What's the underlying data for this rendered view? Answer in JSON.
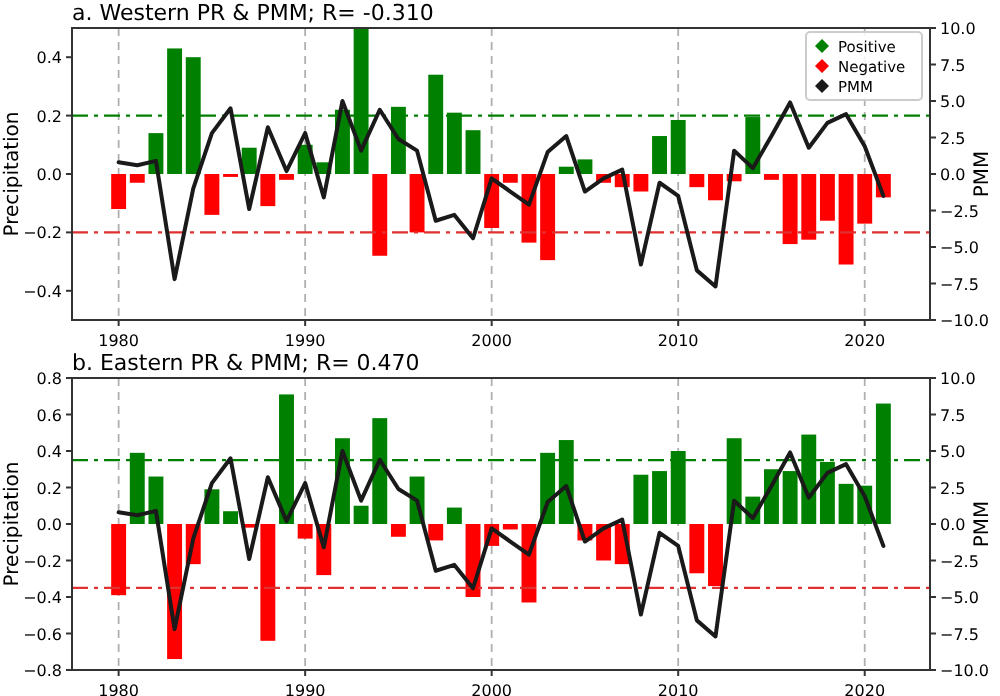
{
  "chart_data": [
    {
      "type": "bar",
      "title": "a. Western PR & PMM; R= -0.310",
      "ylabel": "Precipitation",
      "y2label": "PMM",
      "x": [
        1980,
        1981,
        1982,
        1983,
        1984,
        1985,
        1986,
        1987,
        1988,
        1989,
        1990,
        1991,
        1992,
        1993,
        1994,
        1995,
        1996,
        1997,
        1998,
        1999,
        2000,
        2001,
        2002,
        2003,
        2004,
        2005,
        2006,
        2007,
        2008,
        2009,
        2010,
        2011,
        2012,
        2013,
        2014,
        2015,
        2016,
        2017,
        2018,
        2019,
        2020,
        2021
      ],
      "series": [
        {
          "name": "Positive",
          "color": "#008000",
          "values": [
            null,
            null,
            0.14,
            0.43,
            0.4,
            null,
            null,
            0.09,
            null,
            null,
            0.1,
            0.04,
            0.22,
            0.5,
            null,
            0.23,
            null,
            0.34,
            0.21,
            0.15,
            null,
            null,
            null,
            null,
            0.025,
            0.05,
            null,
            null,
            null,
            0.13,
            0.185,
            null,
            null,
            null,
            0.195,
            null,
            null,
            null,
            null,
            null,
            null,
            null
          ]
        },
        {
          "name": "Negative",
          "color": "#ff0000",
          "values": [
            -0.12,
            -0.03,
            null,
            null,
            null,
            -0.14,
            -0.01,
            null,
            -0.11,
            -0.02,
            null,
            null,
            null,
            null,
            -0.28,
            null,
            -0.2,
            null,
            null,
            null,
            -0.185,
            -0.03,
            -0.235,
            -0.295,
            null,
            null,
            -0.03,
            -0.045,
            -0.06,
            null,
            null,
            -0.045,
            -0.09,
            -0.025,
            null,
            -0.02,
            -0.24,
            -0.225,
            -0.16,
            -0.31,
            -0.17,
            -0.08
          ]
        },
        {
          "name": "PMM",
          "type": "line",
          "axis": "y2",
          "color": "#1a1a1a",
          "values": [
            0.8,
            0.6,
            0.9,
            -7.2,
            -1.0,
            2.8,
            4.5,
            -2.4,
            3.2,
            0.2,
            2.8,
            -1.6,
            5.0,
            1.6,
            4.4,
            2.4,
            1.6,
            -3.2,
            -2.8,
            -4.4,
            -0.3,
            -1.2,
            -2.1,
            1.5,
            2.6,
            -1.2,
            -0.3,
            0.3,
            -6.2,
            -0.6,
            -1.5,
            -6.6,
            -7.7,
            1.6,
            0.4,
            2.6,
            4.9,
            1.8,
            3.5,
            4.1,
            1.9,
            -1.5
          ]
        }
      ],
      "xlim": [
        1977.5,
        2023.5
      ],
      "xticks": [
        1980,
        1990,
        2000,
        2010,
        2020
      ],
      "ylim": [
        -0.5,
        0.5
      ],
      "yticks": [
        {
          "value": -0.4,
          "label": "−0.4"
        },
        {
          "value": -0.2,
          "label": "−0.2"
        },
        {
          "value": 0,
          "label": "0.0"
        },
        0.2,
        0.4
      ],
      "y2lim": [
        -10,
        10
      ],
      "y2ticks": [
        {
          "value": -10,
          "label": "−10.0"
        },
        {
          "value": -7.5,
          "label": "−7.5"
        },
        {
          "value": -5,
          "label": "−5.0"
        },
        {
          "value": -2.5,
          "label": "−2.5"
        },
        {
          "value": 0,
          "label": "0.0"
        },
        {
          "value": 2.5,
          "label": "2.5"
        },
        {
          "value": 5,
          "label": "5.0"
        },
        {
          "value": 7.5,
          "label": "7.5"
        },
        {
          "value": 10,
          "label": "10.0"
        }
      ],
      "ref_lines": [
        {
          "axis": "y",
          "value": 0.2,
          "color": "#008000"
        },
        {
          "axis": "y",
          "value": -0.2,
          "color": "#e03030"
        }
      ],
      "grid": "x",
      "legend": "top right"
    },
    {
      "type": "bar",
      "title": "b. Eastern PR & PMM; R= 0.470",
      "ylabel": "Precipitation",
      "y2label": "PMM",
      "x": [
        1980,
        1981,
        1982,
        1983,
        1984,
        1985,
        1986,
        1987,
        1988,
        1989,
        1990,
        1991,
        1992,
        1993,
        1994,
        1995,
        1996,
        1997,
        1998,
        1999,
        2000,
        2001,
        2002,
        2003,
        2004,
        2005,
        2006,
        2007,
        2008,
        2009,
        2010,
        2011,
        2012,
        2013,
        2014,
        2015,
        2016,
        2017,
        2018,
        2019,
        2020,
        2021
      ],
      "series": [
        {
          "color": "#008000",
          "values": [
            null,
            0.39,
            0.26,
            null,
            null,
            0.19,
            0.07,
            null,
            null,
            0.71,
            null,
            null,
            0.47,
            0.1,
            0.58,
            null,
            0.26,
            null,
            0.09,
            null,
            null,
            null,
            null,
            0.39,
            0.46,
            null,
            null,
            null,
            0.27,
            0.29,
            0.4,
            null,
            null,
            0.47,
            0.15,
            0.3,
            0.29,
            0.49,
            0.34,
            0.22,
            0.21,
            0.66
          ]
        },
        {
          "color": "#ff0000",
          "values": [
            -0.39,
            null,
            null,
            -0.74,
            -0.22,
            null,
            null,
            -0.02,
            -0.64,
            null,
            -0.08,
            -0.28,
            null,
            null,
            null,
            -0.07,
            null,
            -0.09,
            null,
            -0.4,
            -0.12,
            -0.03,
            -0.43,
            null,
            null,
            -0.09,
            -0.2,
            -0.22,
            null,
            null,
            null,
            -0.27,
            -0.34,
            null,
            null,
            null,
            null,
            null,
            null,
            null,
            null,
            null
          ]
        },
        {
          "type": "line",
          "axis": "y2",
          "color": "#1a1a1a",
          "values": [
            0.8,
            0.6,
            0.9,
            -7.2,
            -1.0,
            2.8,
            4.5,
            -2.4,
            3.2,
            0.2,
            2.8,
            -1.6,
            5.0,
            1.6,
            4.4,
            2.4,
            1.6,
            -3.2,
            -2.8,
            -4.4,
            -0.3,
            -1.2,
            -2.1,
            1.5,
            2.6,
            -1.2,
            -0.3,
            0.3,
            -6.2,
            -0.6,
            -1.5,
            -6.6,
            -7.7,
            1.6,
            0.4,
            2.6,
            4.9,
            1.8,
            3.5,
            4.1,
            1.9,
            -1.5
          ]
        }
      ],
      "xlim": [
        1977.5,
        2023.5
      ],
      "xticks": [
        1980,
        1990,
        2000,
        2010,
        2020
      ],
      "ylim": [
        -0.8,
        0.8
      ],
      "yticks": [
        {
          "value": -0.8,
          "label": "−0.8"
        },
        {
          "value": -0.6,
          "label": "−0.6"
        },
        {
          "value": -0.4,
          "label": "−0.4"
        },
        {
          "value": -0.2,
          "label": "−0.2"
        },
        {
          "value": 0,
          "label": "0.0"
        },
        0.2,
        0.4,
        0.6,
        0.8
      ],
      "y2lim": [
        -10,
        10
      ],
      "y2ticks": [
        {
          "value": -10,
          "label": "−10.0"
        },
        {
          "value": -7.5,
          "label": "−7.5"
        },
        {
          "value": -5,
          "label": "−5.0"
        },
        {
          "value": -2.5,
          "label": "−2.5"
        },
        {
          "value": 0,
          "label": "0.0"
        },
        {
          "value": 2.5,
          "label": "2.5"
        },
        {
          "value": 5,
          "label": "5.0"
        },
        {
          "value": 7.5,
          "label": "7.5"
        },
        {
          "value": 10,
          "label": "10.0"
        }
      ],
      "ref_lines": [
        {
          "axis": "y",
          "value": 0.35,
          "color": "#008000"
        },
        {
          "axis": "y",
          "value": -0.35,
          "color": "#e03030"
        }
      ],
      "grid": "x",
      "legend": false
    }
  ]
}
